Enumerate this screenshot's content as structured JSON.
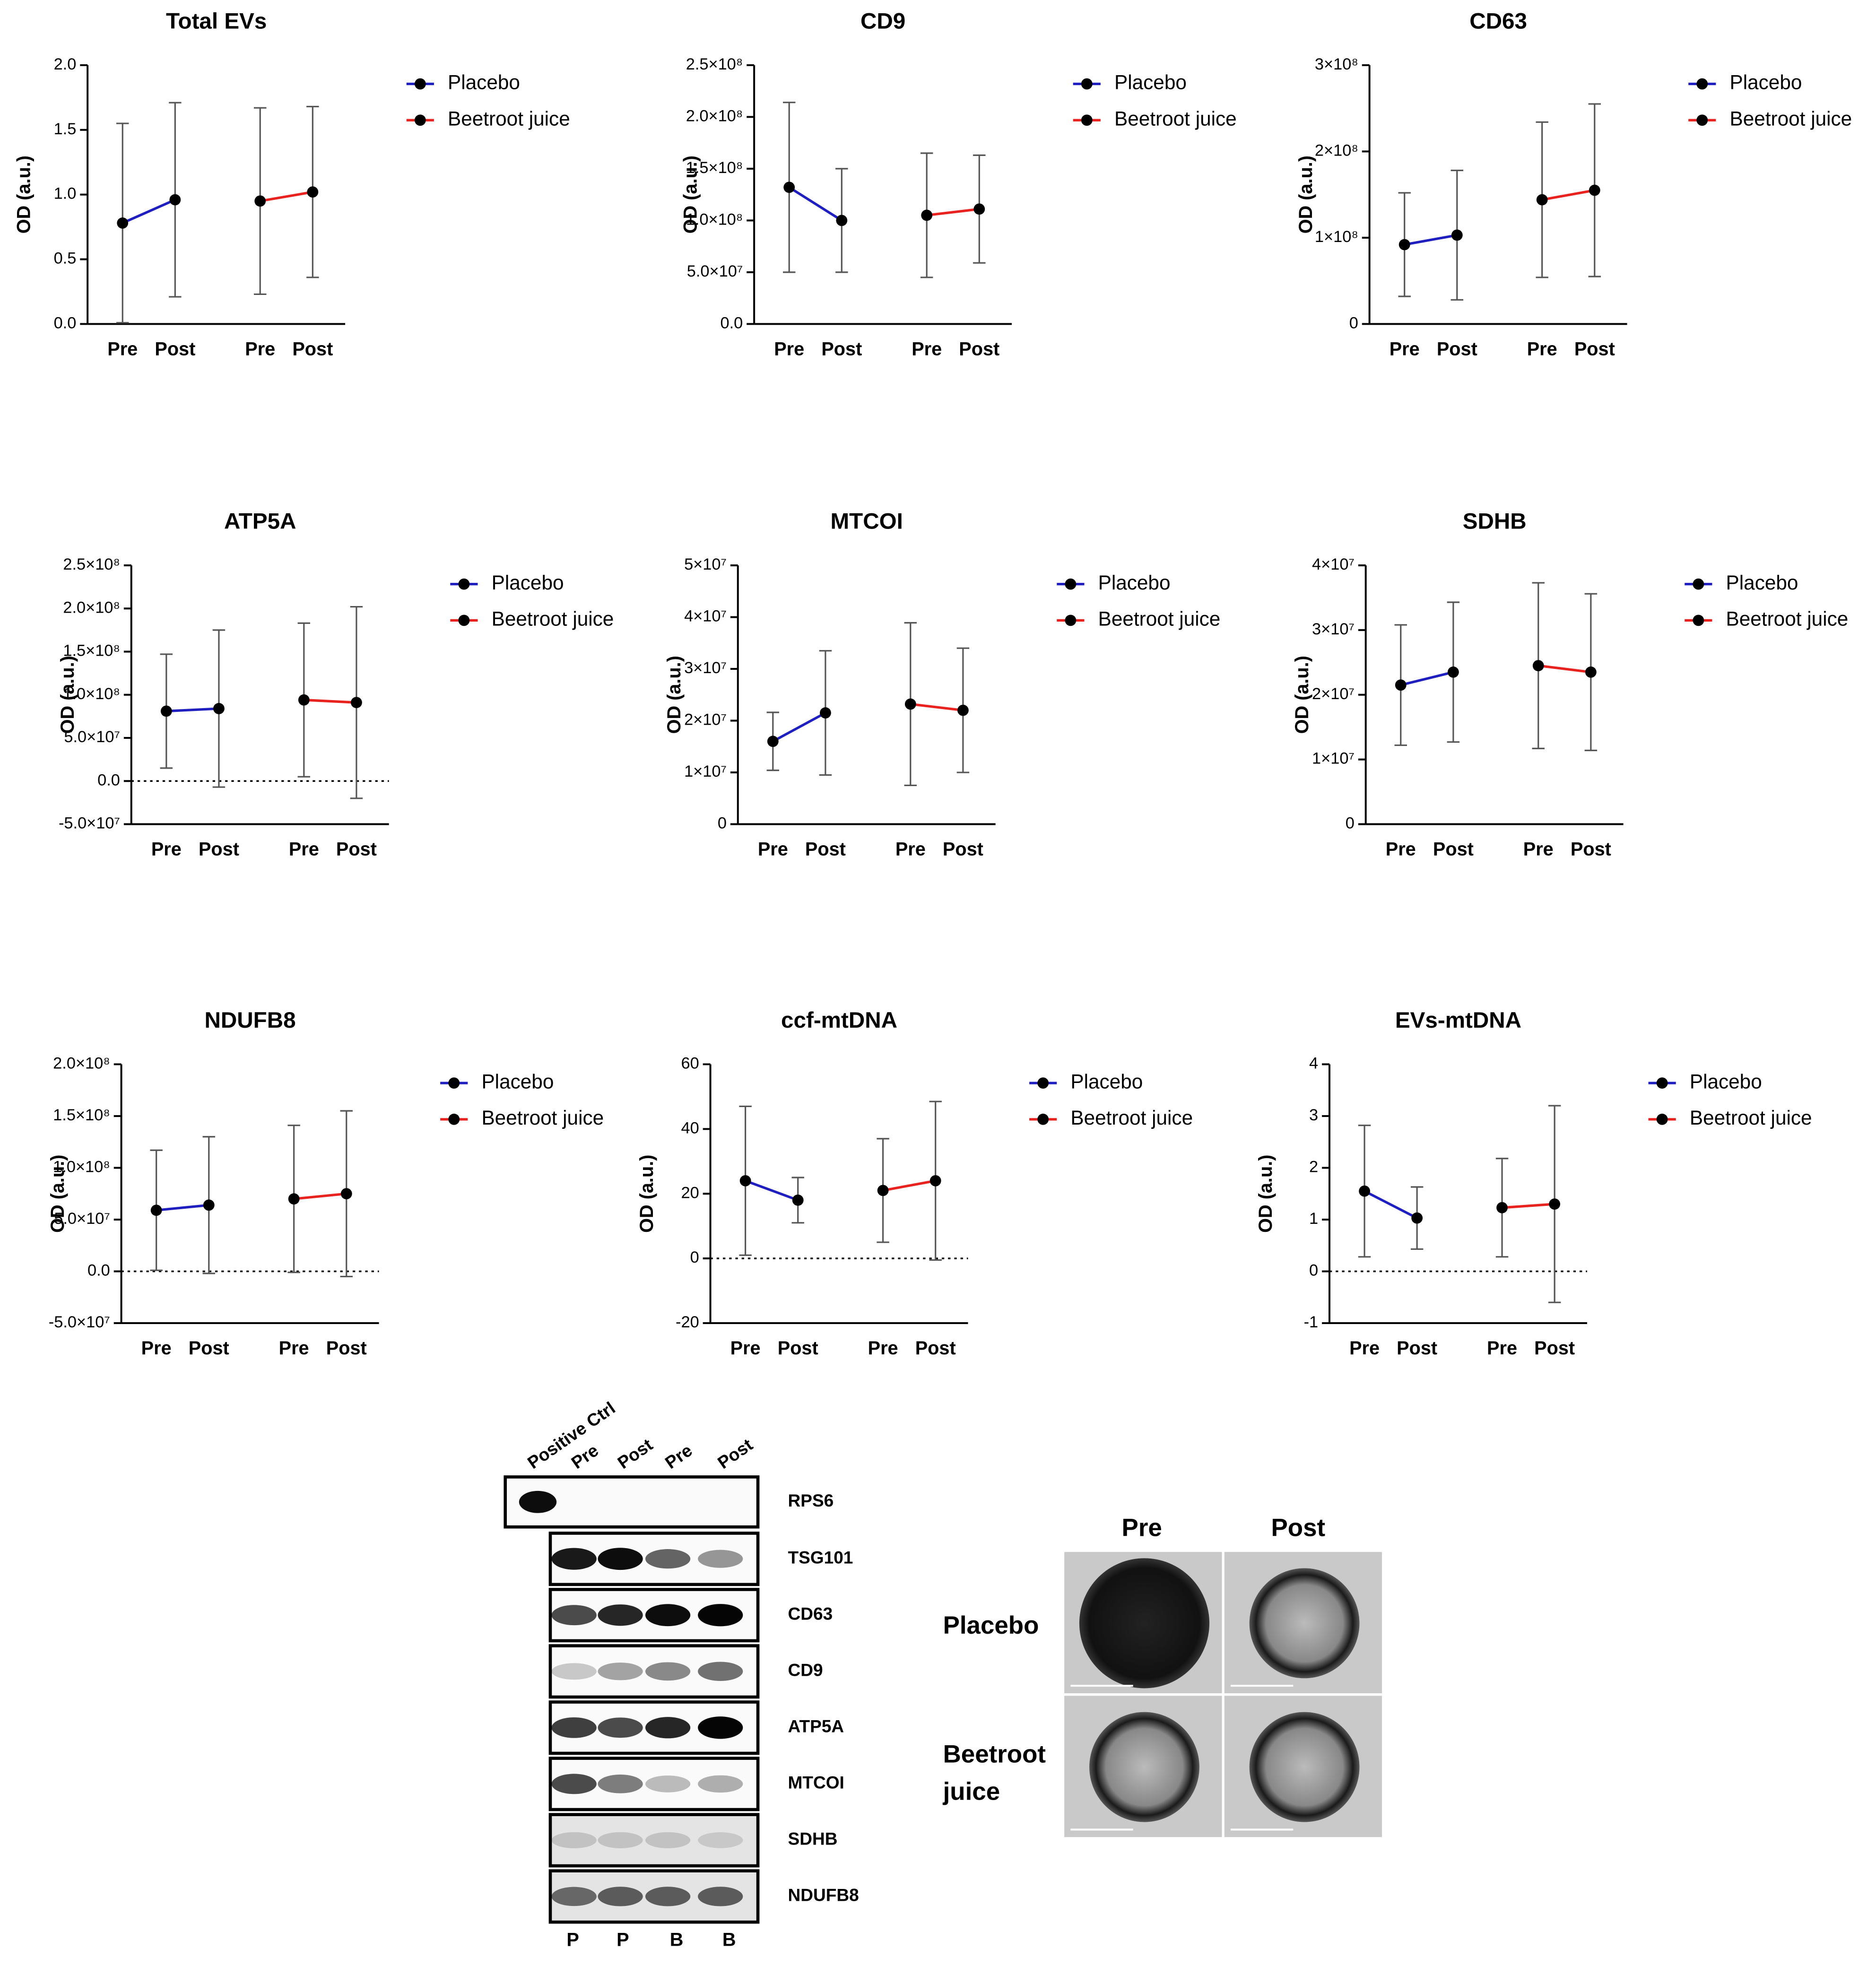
{
  "chart_data": [
    {
      "type": "errorbar",
      "title": "Total EVs",
      "ylabel": "OD (a.u.)",
      "categories": [
        "Pre",
        "Post"
      ],
      "ylim": [
        0,
        2
      ],
      "yticks": [
        {
          "value": 0,
          "label": "0.0"
        },
        0.5,
        {
          "value": 1,
          "label": "1.0"
        },
        1.5,
        {
          "value": 2,
          "label": "2.0"
        }
      ],
      "zero_line": false,
      "series": [
        {
          "name": "Placebo",
          "color": "#1f1fc0",
          "values": [
            0.78,
            0.96
          ],
          "errors": [
            0.77,
            0.75
          ]
        },
        {
          "name": "Beetroot juice",
          "color": "#e8221f",
          "values": [
            0.95,
            1.02
          ],
          "errors": [
            0.72,
            0.66
          ]
        }
      ]
    },
    {
      "type": "errorbar",
      "title": "CD9",
      "ylabel": "OD (a.u.)",
      "categories": [
        "Pre",
        "Post"
      ],
      "ylim": [
        0,
        250000000
      ],
      "yticks": [
        {
          "value": 0,
          "label": "0.0"
        },
        {
          "value": 50000000,
          "label": "5.0×10⁷"
        },
        {
          "value": 100000000,
          "label": "1.0×10⁸"
        },
        {
          "value": 150000000,
          "label": "1.5×10⁸"
        },
        {
          "value": 200000000,
          "label": "2.0×10⁸"
        },
        {
          "value": 250000000,
          "label": "2.5×10⁸"
        }
      ],
      "zero_line": false,
      "series": [
        {
          "name": "Placebo",
          "color": "#1f1fc0",
          "values": [
            132000000,
            100000000
          ],
          "errors": [
            82000000,
            50000000
          ]
        },
        {
          "name": "Beetroot juice",
          "color": "#e8221f",
          "values": [
            105000000,
            111000000
          ],
          "errors": [
            60000000,
            52000000
          ]
        }
      ]
    },
    {
      "type": "errorbar",
      "title": "CD63",
      "ylabel": "OD (a.u.)",
      "categories": [
        "Pre",
        "Post"
      ],
      "ylim": [
        0,
        300000000
      ],
      "yticks": [
        0,
        {
          "value": 100000000,
          "label": "1×10⁸"
        },
        {
          "value": 200000000,
          "label": "2×10⁸"
        },
        {
          "value": 300000000,
          "label": "3×10⁸"
        }
      ],
      "zero_line": false,
      "series": [
        {
          "name": "Placebo",
          "color": "#1f1fc0",
          "values": [
            92000000,
            103000000
          ],
          "errors": [
            60000000,
            75000000
          ]
        },
        {
          "name": "Beetroot juice",
          "color": "#e8221f",
          "values": [
            144000000,
            155000000
          ],
          "errors": [
            90000000,
            100000000
          ]
        }
      ]
    },
    {
      "type": "errorbar",
      "title": "ATP5A",
      "ylabel": "OD (a.u.)",
      "categories": [
        "Pre",
        "Post"
      ],
      "ylim": [
        -50000000,
        250000000
      ],
      "yticks": [
        {
          "value": -50000000,
          "label": "-5.0×10⁷"
        },
        {
          "value": 0,
          "label": "0.0"
        },
        {
          "value": 50000000,
          "label": "5.0×10⁷"
        },
        {
          "value": 100000000,
          "label": "1.0×10⁸"
        },
        {
          "value": 150000000,
          "label": "1.5×10⁸"
        },
        {
          "value": 200000000,
          "label": "2.0×10⁸"
        },
        {
          "value": 250000000,
          "label": "2.5×10⁸"
        }
      ],
      "zero_line": true,
      "series": [
        {
          "name": "Placebo",
          "color": "#1f1fc0",
          "values": [
            81000000,
            84000000
          ],
          "errors": [
            66000000,
            91000000
          ]
        },
        {
          "name": "Beetroot juice",
          "color": "#e8221f",
          "values": [
            94000000,
            91000000
          ],
          "errors": [
            89000000,
            111000000
          ]
        }
      ]
    },
    {
      "type": "errorbar",
      "title": "MTCOI",
      "ylabel": "OD (a.u.)",
      "categories": [
        "Pre",
        "Post"
      ],
      "ylim": [
        0,
        50000000
      ],
      "yticks": [
        0,
        {
          "value": 10000000,
          "label": "1×10⁷"
        },
        {
          "value": 20000000,
          "label": "2×10⁷"
        },
        {
          "value": 30000000,
          "label": "3×10⁷"
        },
        {
          "value": 40000000,
          "label": "4×10⁷"
        },
        {
          "value": 50000000,
          "label": "5×10⁷"
        }
      ],
      "zero_line": false,
      "series": [
        {
          "name": "Placebo",
          "color": "#1f1fc0",
          "values": [
            16000000,
            21500000
          ],
          "errors": [
            5600000,
            12000000
          ]
        },
        {
          "name": "Beetroot juice",
          "color": "#e8221f",
          "values": [
            23200000,
            22000000
          ],
          "errors": [
            15700000,
            12000000
          ]
        }
      ]
    },
    {
      "type": "errorbar",
      "title": "SDHB",
      "ylabel": "OD (a.u.)",
      "categories": [
        "Pre",
        "Post"
      ],
      "ylim": [
        0,
        40000000
      ],
      "yticks": [
        0,
        {
          "value": 10000000,
          "label": "1×10⁷"
        },
        {
          "value": 20000000,
          "label": "2×10⁷"
        },
        {
          "value": 30000000,
          "label": "3×10⁷"
        },
        {
          "value": 40000000,
          "label": "4×10⁷"
        }
      ],
      "zero_line": false,
      "series": [
        {
          "name": "Placebo",
          "color": "#1f1fc0",
          "values": [
            21500000,
            23500000
          ],
          "errors": [
            9300000,
            10800000
          ]
        },
        {
          "name": "Beetroot juice",
          "color": "#e8221f",
          "values": [
            24500000,
            23500000
          ],
          "errors": [
            12800000,
            12100000
          ]
        }
      ]
    },
    {
      "type": "errorbar",
      "title": "NDUFB8",
      "ylabel": "OD (a.u.)",
      "categories": [
        "Pre",
        "Post"
      ],
      "ylim": [
        -50000000,
        200000000
      ],
      "yticks": [
        {
          "value": -50000000,
          "label": "-5.0×10⁷"
        },
        {
          "value": 0,
          "label": "0.0"
        },
        {
          "value": 50000000,
          "label": "5.0×10⁷"
        },
        {
          "value": 100000000,
          "label": "1.0×10⁸"
        },
        {
          "value": 150000000,
          "label": "1.5×10⁸"
        },
        {
          "value": 200000000,
          "label": "2.0×10⁸"
        }
      ],
      "zero_line": true,
      "series": [
        {
          "name": "Placebo",
          "color": "#1f1fc0",
          "values": [
            59000000,
            64000000
          ],
          "errors": [
            58000000,
            66000000
          ]
        },
        {
          "name": "Beetroot juice",
          "color": "#e8221f",
          "values": [
            70000000,
            75000000
          ],
          "errors": [
            71000000,
            80000000
          ]
        }
      ]
    },
    {
      "type": "errorbar",
      "title": "ccf-mtDNA",
      "ylabel": "OD (a.u.)",
      "categories": [
        "Pre",
        "Post"
      ],
      "ylim": [
        -20,
        60
      ],
      "yticks": [
        -20,
        0,
        20,
        40,
        60
      ],
      "zero_line": true,
      "series": [
        {
          "name": "Placebo",
          "color": "#1f1fc0",
          "values": [
            24,
            18
          ],
          "errors": [
            23,
            7
          ]
        },
        {
          "name": "Beetroot juice",
          "color": "#e8221f",
          "values": [
            21,
            24
          ],
          "errors": [
            16,
            24.5
          ]
        }
      ]
    },
    {
      "type": "errorbar",
      "title": "EVs-mtDNA",
      "ylabel": "OD (a.u.)",
      "categories": [
        "Pre",
        "Post"
      ],
      "ylim": [
        -1,
        4
      ],
      "yticks": [
        -1,
        0,
        1,
        2,
        3,
        4
      ],
      "zero_line": true,
      "series": [
        {
          "name": "Placebo",
          "color": "#1f1fc0",
          "values": [
            1.55,
            1.03
          ],
          "errors": [
            1.27,
            0.6
          ]
        },
        {
          "name": "Beetroot juice",
          "color": "#e8221f",
          "values": [
            1.23,
            1.3
          ],
          "errors": [
            0.95,
            1.9
          ]
        }
      ]
    }
  ],
  "blot": {
    "lanes": [
      "Positive Ctrl",
      "Pre",
      "Post",
      "Pre",
      "Post"
    ],
    "bands": [
      "RPS6",
      "TSG101",
      "CD63",
      "CD9",
      "ATP5A",
      "MTCOI",
      "SDHB",
      "NDUFB8"
    ],
    "groups": [
      "P",
      "P",
      "B",
      "B"
    ]
  },
  "tem": {
    "columns": [
      "Pre",
      "Post"
    ],
    "rows": [
      [
        "Placebo"
      ],
      [
        "Beetroot",
        "juice"
      ]
    ]
  }
}
